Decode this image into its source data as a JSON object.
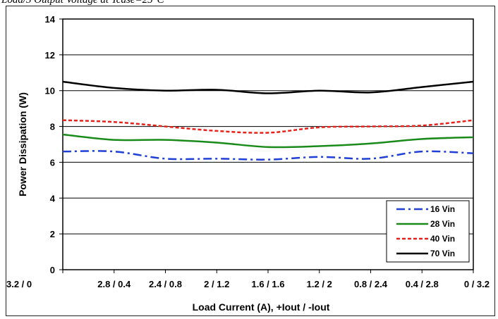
{
  "caption": "Load/3 Output Voltage at Tcase=25°C",
  "chart_data": {
    "type": "line",
    "title": "",
    "xlabel": "Load Current (A), +Iout / -Iout",
    "ylabel": "Power Dissipation (W)",
    "categories": [
      "3.2 / 0",
      "2.8 / 0.4",
      "2.4 / 0.8",
      "2 / 1.2",
      "1.6 / 1.6",
      "1.2 / 2",
      "0.8 / 2.4",
      "0.4 / 2.8",
      "0 / 3.2"
    ],
    "ylim": [
      0,
      14
    ],
    "yticks": [
      "0",
      "2",
      "4",
      "6",
      "8",
      "10",
      "12",
      "14"
    ],
    "grid": true,
    "legend_position": "bottom-right",
    "series": [
      {
        "name": "16 Vin",
        "color": "#1f3fd6",
        "dash": "dash-dot",
        "values": [
          6.6,
          6.6,
          6.2,
          6.2,
          6.15,
          6.3,
          6.2,
          6.6,
          6.5
        ]
      },
      {
        "name": "28 Vin",
        "color": "#1a8a1a",
        "dash": "solid",
        "values": [
          7.55,
          7.25,
          7.25,
          7.1,
          6.85,
          6.9,
          7.05,
          7.3,
          7.4
        ]
      },
      {
        "name": "40 Vin",
        "color": "#e8201a",
        "dash": "dotted",
        "values": [
          8.35,
          8.25,
          8.0,
          7.75,
          7.65,
          7.95,
          8.0,
          8.05,
          8.35
        ]
      },
      {
        "name": "70 Vin",
        "color": "#000000",
        "dash": "solid",
        "values": [
          10.5,
          10.15,
          10.0,
          10.05,
          9.85,
          10.0,
          9.9,
          10.2,
          10.5
        ]
      }
    ]
  }
}
